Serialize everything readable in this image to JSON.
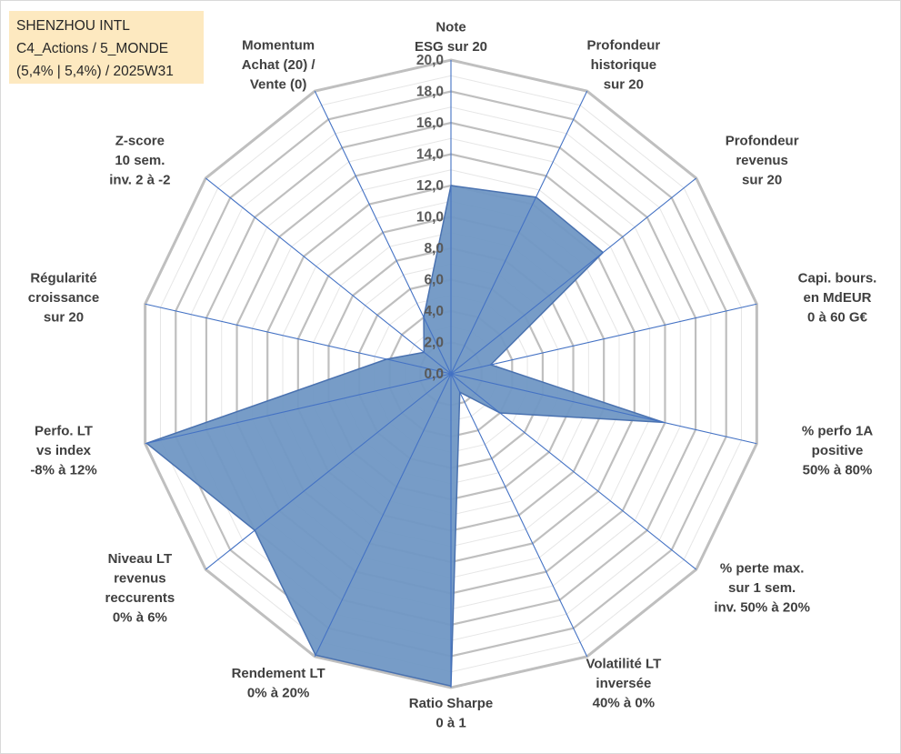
{
  "title_box": {
    "line1": "SHENZHOU INTL",
    "line2": "C4_Actions / 5_MONDE",
    "line3": "(5,4% | 5,4%) / 2025W31"
  },
  "chart_data": {
    "type": "radar",
    "rmin": 0,
    "rmax": 20,
    "tick_step": 2,
    "tick_labels": [
      "0,0",
      "2,0",
      "4,0",
      "6,0",
      "8,0",
      "10,0",
      "12,0",
      "14,0",
      "16,0",
      "18,0",
      "20,0"
    ],
    "grid": true,
    "colors": {
      "fill": "#7097c4",
      "stroke": "#4a72b0",
      "spoke": "#4472c4",
      "grid_major": "#bfbfbf",
      "grid_minor": "#e6e6e6"
    },
    "axes": [
      {
        "label": [
          "Note",
          "ESG sur 20"
        ],
        "value": 12.0
      },
      {
        "label": [
          "Profondeur",
          "historique",
          "sur 20"
        ],
        "value": 12.5
      },
      {
        "label": [
          "Profondeur",
          "revenus",
          "sur 20"
        ],
        "value": 12.4
      },
      {
        "label": [
          "Capi. bours.",
          "en MdEUR",
          "0 à 60 G€"
        ],
        "value": 2.6
      },
      {
        "label": [
          "% perfo 1A",
          "positive",
          "50% à 80%"
        ],
        "value": 13.9
      },
      {
        "label": [
          "% perte max.",
          "sur 1 sem.",
          "inv. 50% à 20%"
        ],
        "value": 4.0
      },
      {
        "label": [
          "Volatilité LT",
          "inversée",
          "40% à 0%"
        ],
        "value": 1.3
      },
      {
        "label": [
          "Ratio Sharpe",
          "0 à 1"
        ],
        "value": 19.9
      },
      {
        "label": [
          "Rendement LT",
          "0% à 20%"
        ],
        "value": 19.9
      },
      {
        "label": [
          "Niveau LT",
          "revenus",
          "reccurents",
          "0% à 6%"
        ],
        "value": 16.0
      },
      {
        "label": [
          "Perfo. LT",
          "vs index",
          "-8% à 12%"
        ],
        "value": 19.9
      },
      {
        "label": [
          "Régularité",
          "croissance",
          "sur 20"
        ],
        "value": 4.2
      },
      {
        "label": [
          "Z-score",
          "10 sem.",
          "inv. 2 à -2"
        ],
        "value": 2.2
      },
      {
        "label": [
          "Momentum",
          "Achat (20) /",
          "Vente (0)"
        ],
        "value": 4.0
      }
    ]
  }
}
